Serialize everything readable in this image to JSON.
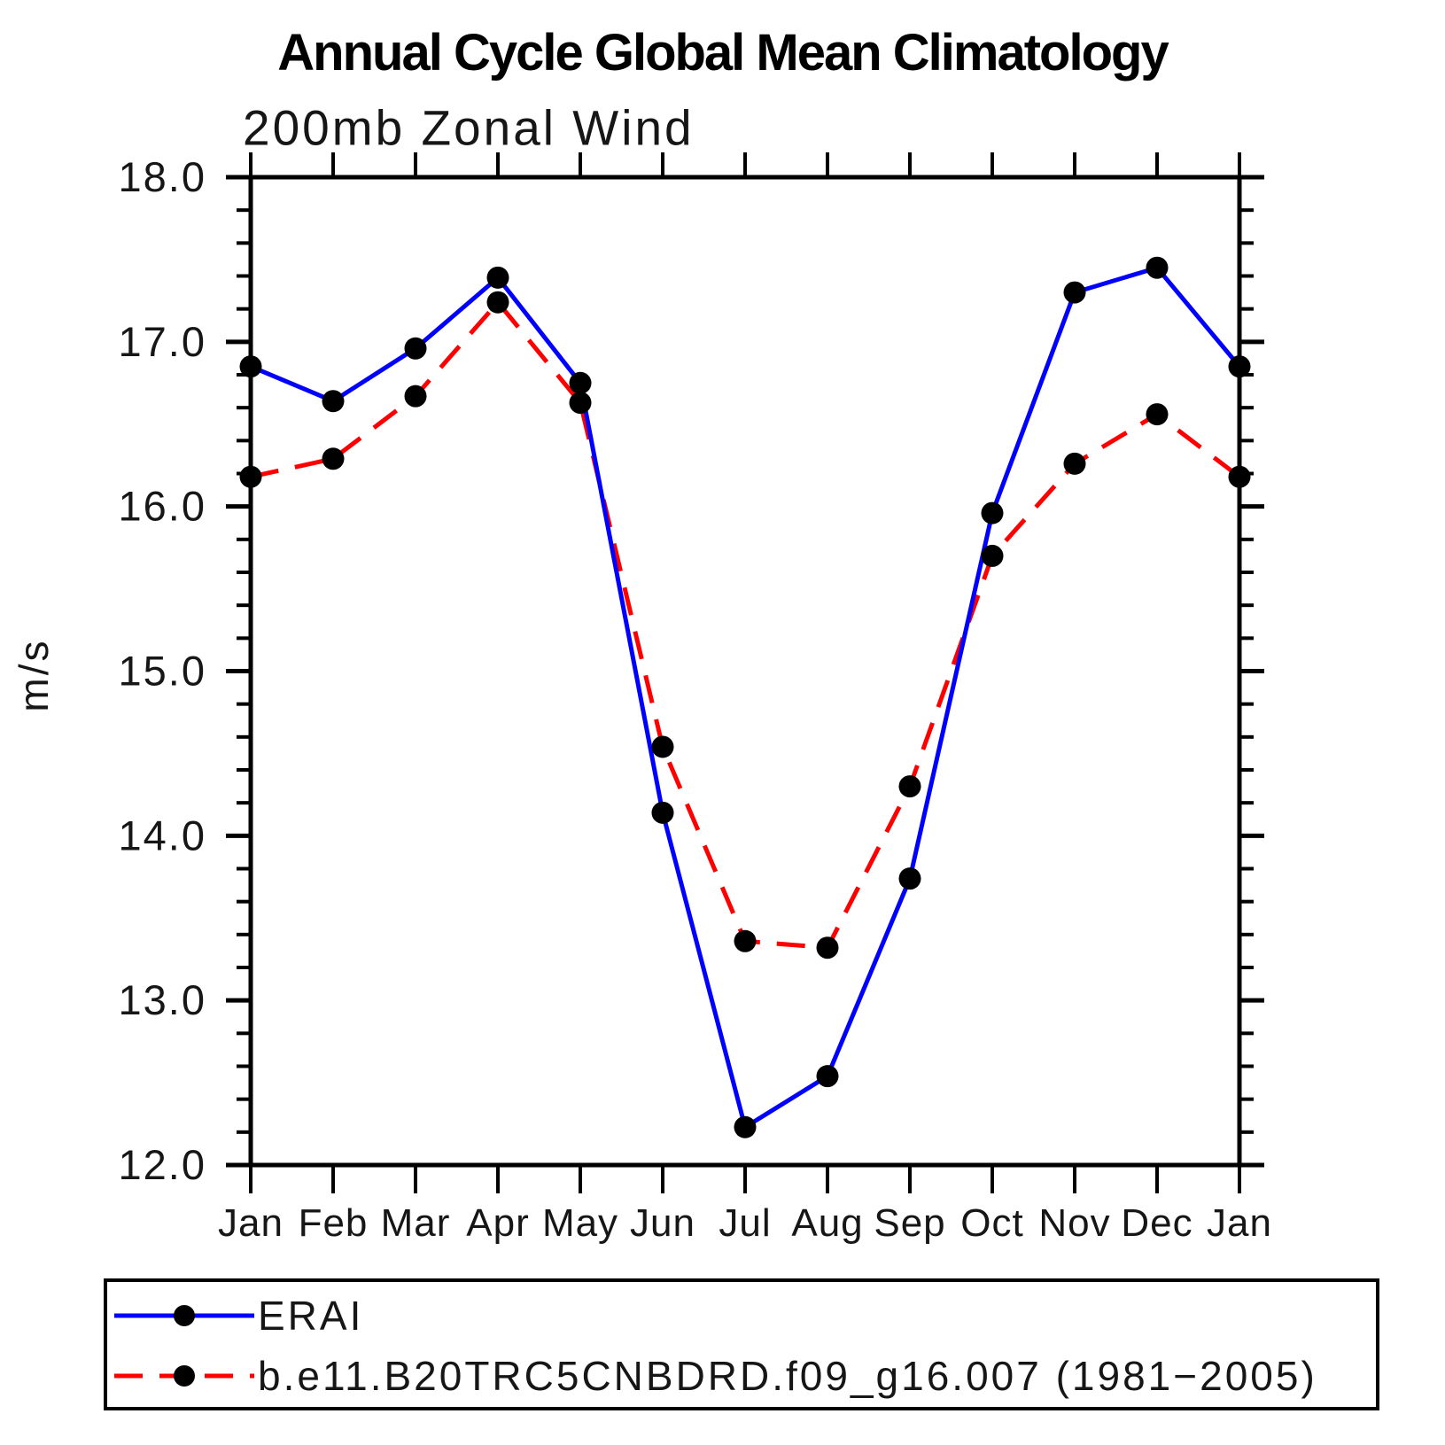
{
  "titles": {
    "main": "Annual Cycle Global Mean Climatology",
    "subtitle": "200mb Zonal Wind",
    "ylabel": "m/s"
  },
  "legend": {
    "entries": [
      {
        "label": "ERAI"
      },
      {
        "label": "b.e11.B20TRC5CNBDRD.f09_g16.007 (1981−2005)"
      }
    ]
  },
  "chart_data": {
    "type": "line",
    "title": "Annual Cycle Global Mean Climatology",
    "subtitle": "200mb Zonal Wind",
    "xlabel": "",
    "ylabel": "m/s",
    "categories": [
      "Jan",
      "Feb",
      "Mar",
      "Apr",
      "May",
      "Jun",
      "Jul",
      "Aug",
      "Sep",
      "Oct",
      "Nov",
      "Dec",
      "Jan"
    ],
    "ylim": [
      12.0,
      18.0
    ],
    "y_major_step": 1.0,
    "y_minor_step": 0.2,
    "y_tick_labels": [
      "12.0",
      "13.0",
      "14.0",
      "15.0",
      "16.0",
      "17.0",
      "18.0"
    ],
    "grid": false,
    "legend_position": "bottom-left-box",
    "axis_color": "#000000",
    "marker_color": "#000000",
    "series": [
      {
        "name": "ERAI",
        "color": "#0000ff",
        "style": "solid",
        "marker": "circle",
        "values": [
          16.85,
          16.64,
          16.96,
          17.39,
          16.75,
          14.14,
          12.23,
          12.54,
          13.74,
          15.96,
          17.3,
          17.45,
          16.85
        ]
      },
      {
        "name": "b.e11.B20TRC5CNBDRD.f09_g16.007 (1981−2005)",
        "color": "#ff0000",
        "style": "dashed",
        "marker": "circle",
        "values": [
          16.18,
          16.29,
          16.67,
          17.24,
          16.63,
          14.54,
          13.36,
          13.32,
          14.3,
          15.7,
          16.26,
          16.56,
          16.18
        ]
      }
    ]
  }
}
